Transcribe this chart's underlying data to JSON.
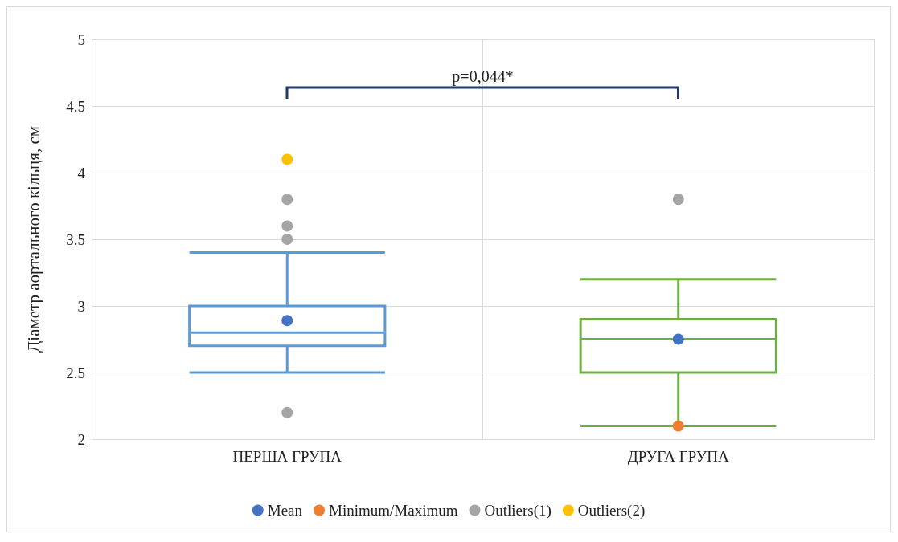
{
  "chart_data": {
    "type": "box",
    "ylabel": "Діаметр аортального кільця, см",
    "categories": [
      "ПЕРША ГРУПА",
      "ДРУГА ГРУПА"
    ],
    "ylim": [
      2,
      5
    ],
    "yticks": [
      2,
      2.5,
      3,
      3.5,
      4,
      4.5,
      5
    ],
    "grid": true,
    "legend": "bottom",
    "marker": "circle",
    "annotations": [
      "p=0,044*"
    ],
    "series": [
      {
        "colors": [
          "#5b9bd5",
          "#70ad47"
        ],
        "boxes": [
          {
            "low": 2.5,
            "q1": 2.7,
            "median": 2.8,
            "q3": 3.0,
            "high": 3.4
          },
          {
            "low": 2.1,
            "q1": 2.5,
            "median": 2.75,
            "q3": 2.9,
            "high": 3.2
          }
        ]
      },
      {
        "type": "scatter",
        "name": "Mean",
        "color": "#4472c4",
        "x": [
          "ПЕРША ГРУПА",
          "ДРУГА ГРУПА"
        ],
        "values": [
          2.89,
          2.75
        ]
      },
      {
        "type": "scatter",
        "name": "Minimum/Maximum",
        "color": "#ed7d31",
        "x": [
          "ДРУГА ГРУПА"
        ],
        "values": [
          2.1
        ]
      },
      {
        "type": "scatter",
        "name": "Outliers(1)",
        "color": "#a5a5a5",
        "x": [
          "ПЕРША ГРУПА",
          "ПЕРША ГРУПА",
          "ПЕРША ГРУПА",
          "ПЕРША ГРУПА",
          "ДРУГА ГРУПА"
        ],
        "values": [
          3.8,
          3.6,
          3.5,
          2.2,
          3.8
        ]
      },
      {
        "type": "scatter",
        "name": "Outliers(2)",
        "color": "#ffc000",
        "x": [
          "ПЕРША ГРУПА"
        ],
        "values": [
          4.1
        ]
      }
    ]
  }
}
